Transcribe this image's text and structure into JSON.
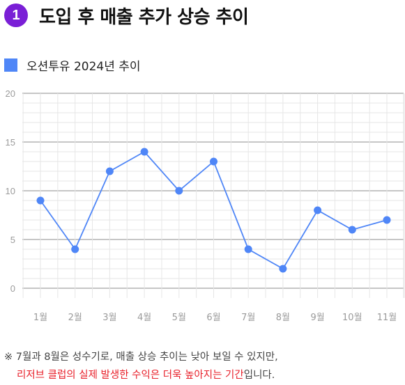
{
  "heading": {
    "number": "1",
    "title": "도입 후 매출 추가 상승 추이"
  },
  "colors": {
    "badge": "#7a1fd6",
    "series": "#4f86f7",
    "highlight": "#e8202a"
  },
  "chart_data": {
    "type": "line",
    "categories": [
      "1월",
      "2월",
      "3월",
      "4월",
      "5월",
      "6월",
      "7월",
      "8월",
      "9월",
      "10월",
      "11월"
    ],
    "series": [
      {
        "name": "오션투유 2024년 추이",
        "values": [
          9,
          4,
          12,
          14,
          10,
          13,
          4,
          2,
          8,
          6,
          7
        ]
      }
    ],
    "ylim": [
      0,
      20
    ],
    "yticks": [
      "0",
      "5",
      "10",
      "15",
      "20"
    ],
    "grid": true,
    "legend": "top-left"
  },
  "note": {
    "line1": "※ 7월과 8월은 성수기로, 매출 상승 추이는 낮아 보일 수 있지만,",
    "line2_highlight": "리저브 클럽의 실제 발생한 수익은 더욱 높아지는 기간",
    "line2_tail": "입니다."
  }
}
